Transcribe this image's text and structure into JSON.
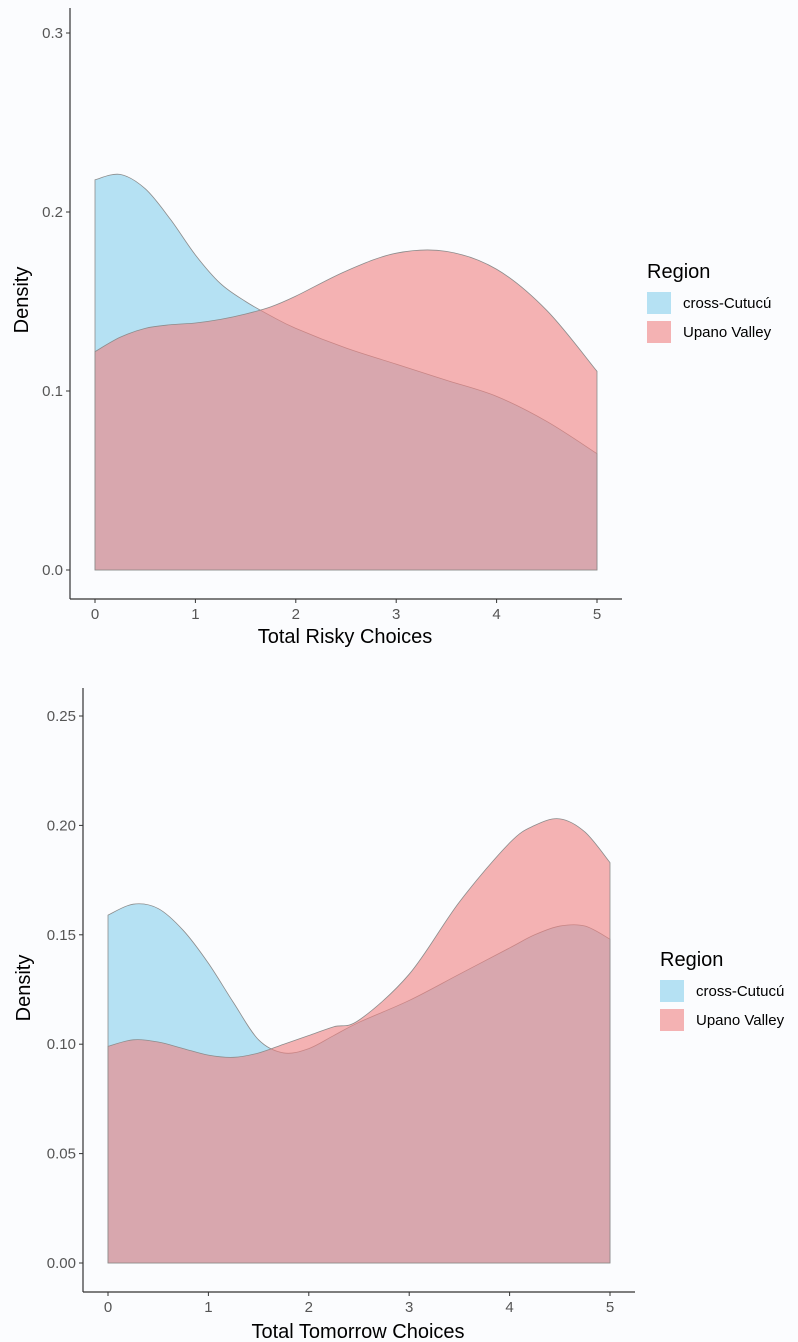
{
  "chart_data": [
    {
      "type": "area",
      "xlabel": "Total Risky Choices",
      "ylabel": "Density",
      "xlim": [
        0,
        5
      ],
      "ylim": [
        0,
        0.3
      ],
      "x_ticks": [
        "0",
        "1",
        "2",
        "3",
        "4",
        "5"
      ],
      "y_ticks": [
        "0.0",
        "0.1",
        "0.2",
        "0.3"
      ],
      "grid": false,
      "legend": {
        "title": "Region",
        "placement": "right",
        "entries": [
          "cross-Cutucú",
          "Upano Valley"
        ]
      },
      "series": [
        {
          "name": "cross-Cutucú",
          "color": "#87ceeb",
          "x": [
            0,
            0.25,
            0.5,
            0.75,
            1.0,
            1.25,
            1.5,
            1.75,
            2.0,
            2.5,
            3.0,
            3.5,
            4.0,
            4.5,
            5.0
          ],
          "y": [
            0.218,
            0.221,
            0.213,
            0.196,
            0.176,
            0.16,
            0.15,
            0.142,
            0.135,
            0.124,
            0.115,
            0.106,
            0.097,
            0.083,
            0.065
          ]
        },
        {
          "name": "Upano Valley",
          "color": "#f08080",
          "x": [
            0,
            0.25,
            0.5,
            0.75,
            1.0,
            1.25,
            1.5,
            1.75,
            2.0,
            2.5,
            3.0,
            3.5,
            4.0,
            4.5,
            5.0
          ],
          "y": [
            0.122,
            0.13,
            0.135,
            0.137,
            0.138,
            0.14,
            0.143,
            0.147,
            0.153,
            0.167,
            0.177,
            0.178,
            0.168,
            0.145,
            0.111
          ]
        }
      ]
    },
    {
      "type": "area",
      "xlabel": "Total Tomorrow Choices",
      "ylabel": "Density",
      "xlim": [
        0,
        5
      ],
      "ylim": [
        0,
        0.25
      ],
      "x_ticks": [
        "0",
        "1",
        "2",
        "3",
        "4",
        "5"
      ],
      "y_ticks": [
        "0.00",
        "0.05",
        "0.10",
        "0.15",
        "0.20",
        "0.25"
      ],
      "grid": false,
      "legend": {
        "title": "Region",
        "placement": "right",
        "entries": [
          "cross-Cutucú",
          "Upano Valley"
        ]
      },
      "series": [
        {
          "name": "cross-Cutucú",
          "color": "#87ceeb",
          "x": [
            0,
            0.25,
            0.5,
            0.75,
            1.0,
            1.25,
            1.5,
            1.75,
            2.0,
            2.25,
            2.5,
            3.0,
            3.5,
            4.0,
            4.25,
            4.5,
            4.75,
            5.0
          ],
          "y": [
            0.159,
            0.164,
            0.162,
            0.152,
            0.137,
            0.119,
            0.102,
            0.096,
            0.098,
            0.104,
            0.11,
            0.12,
            0.132,
            0.144,
            0.15,
            0.154,
            0.154,
            0.148
          ]
        },
        {
          "name": "Upano Valley",
          "color": "#f08080",
          "x": [
            0,
            0.25,
            0.5,
            0.75,
            1.0,
            1.25,
            1.5,
            1.75,
            2.0,
            2.25,
            2.5,
            3.0,
            3.5,
            4.0,
            4.25,
            4.5,
            4.75,
            5.0
          ],
          "y": [
            0.099,
            0.102,
            0.101,
            0.098,
            0.095,
            0.094,
            0.096,
            0.1,
            0.104,
            0.108,
            0.111,
            0.132,
            0.165,
            0.192,
            0.2,
            0.203,
            0.197,
            0.183
          ]
        }
      ]
    }
  ]
}
